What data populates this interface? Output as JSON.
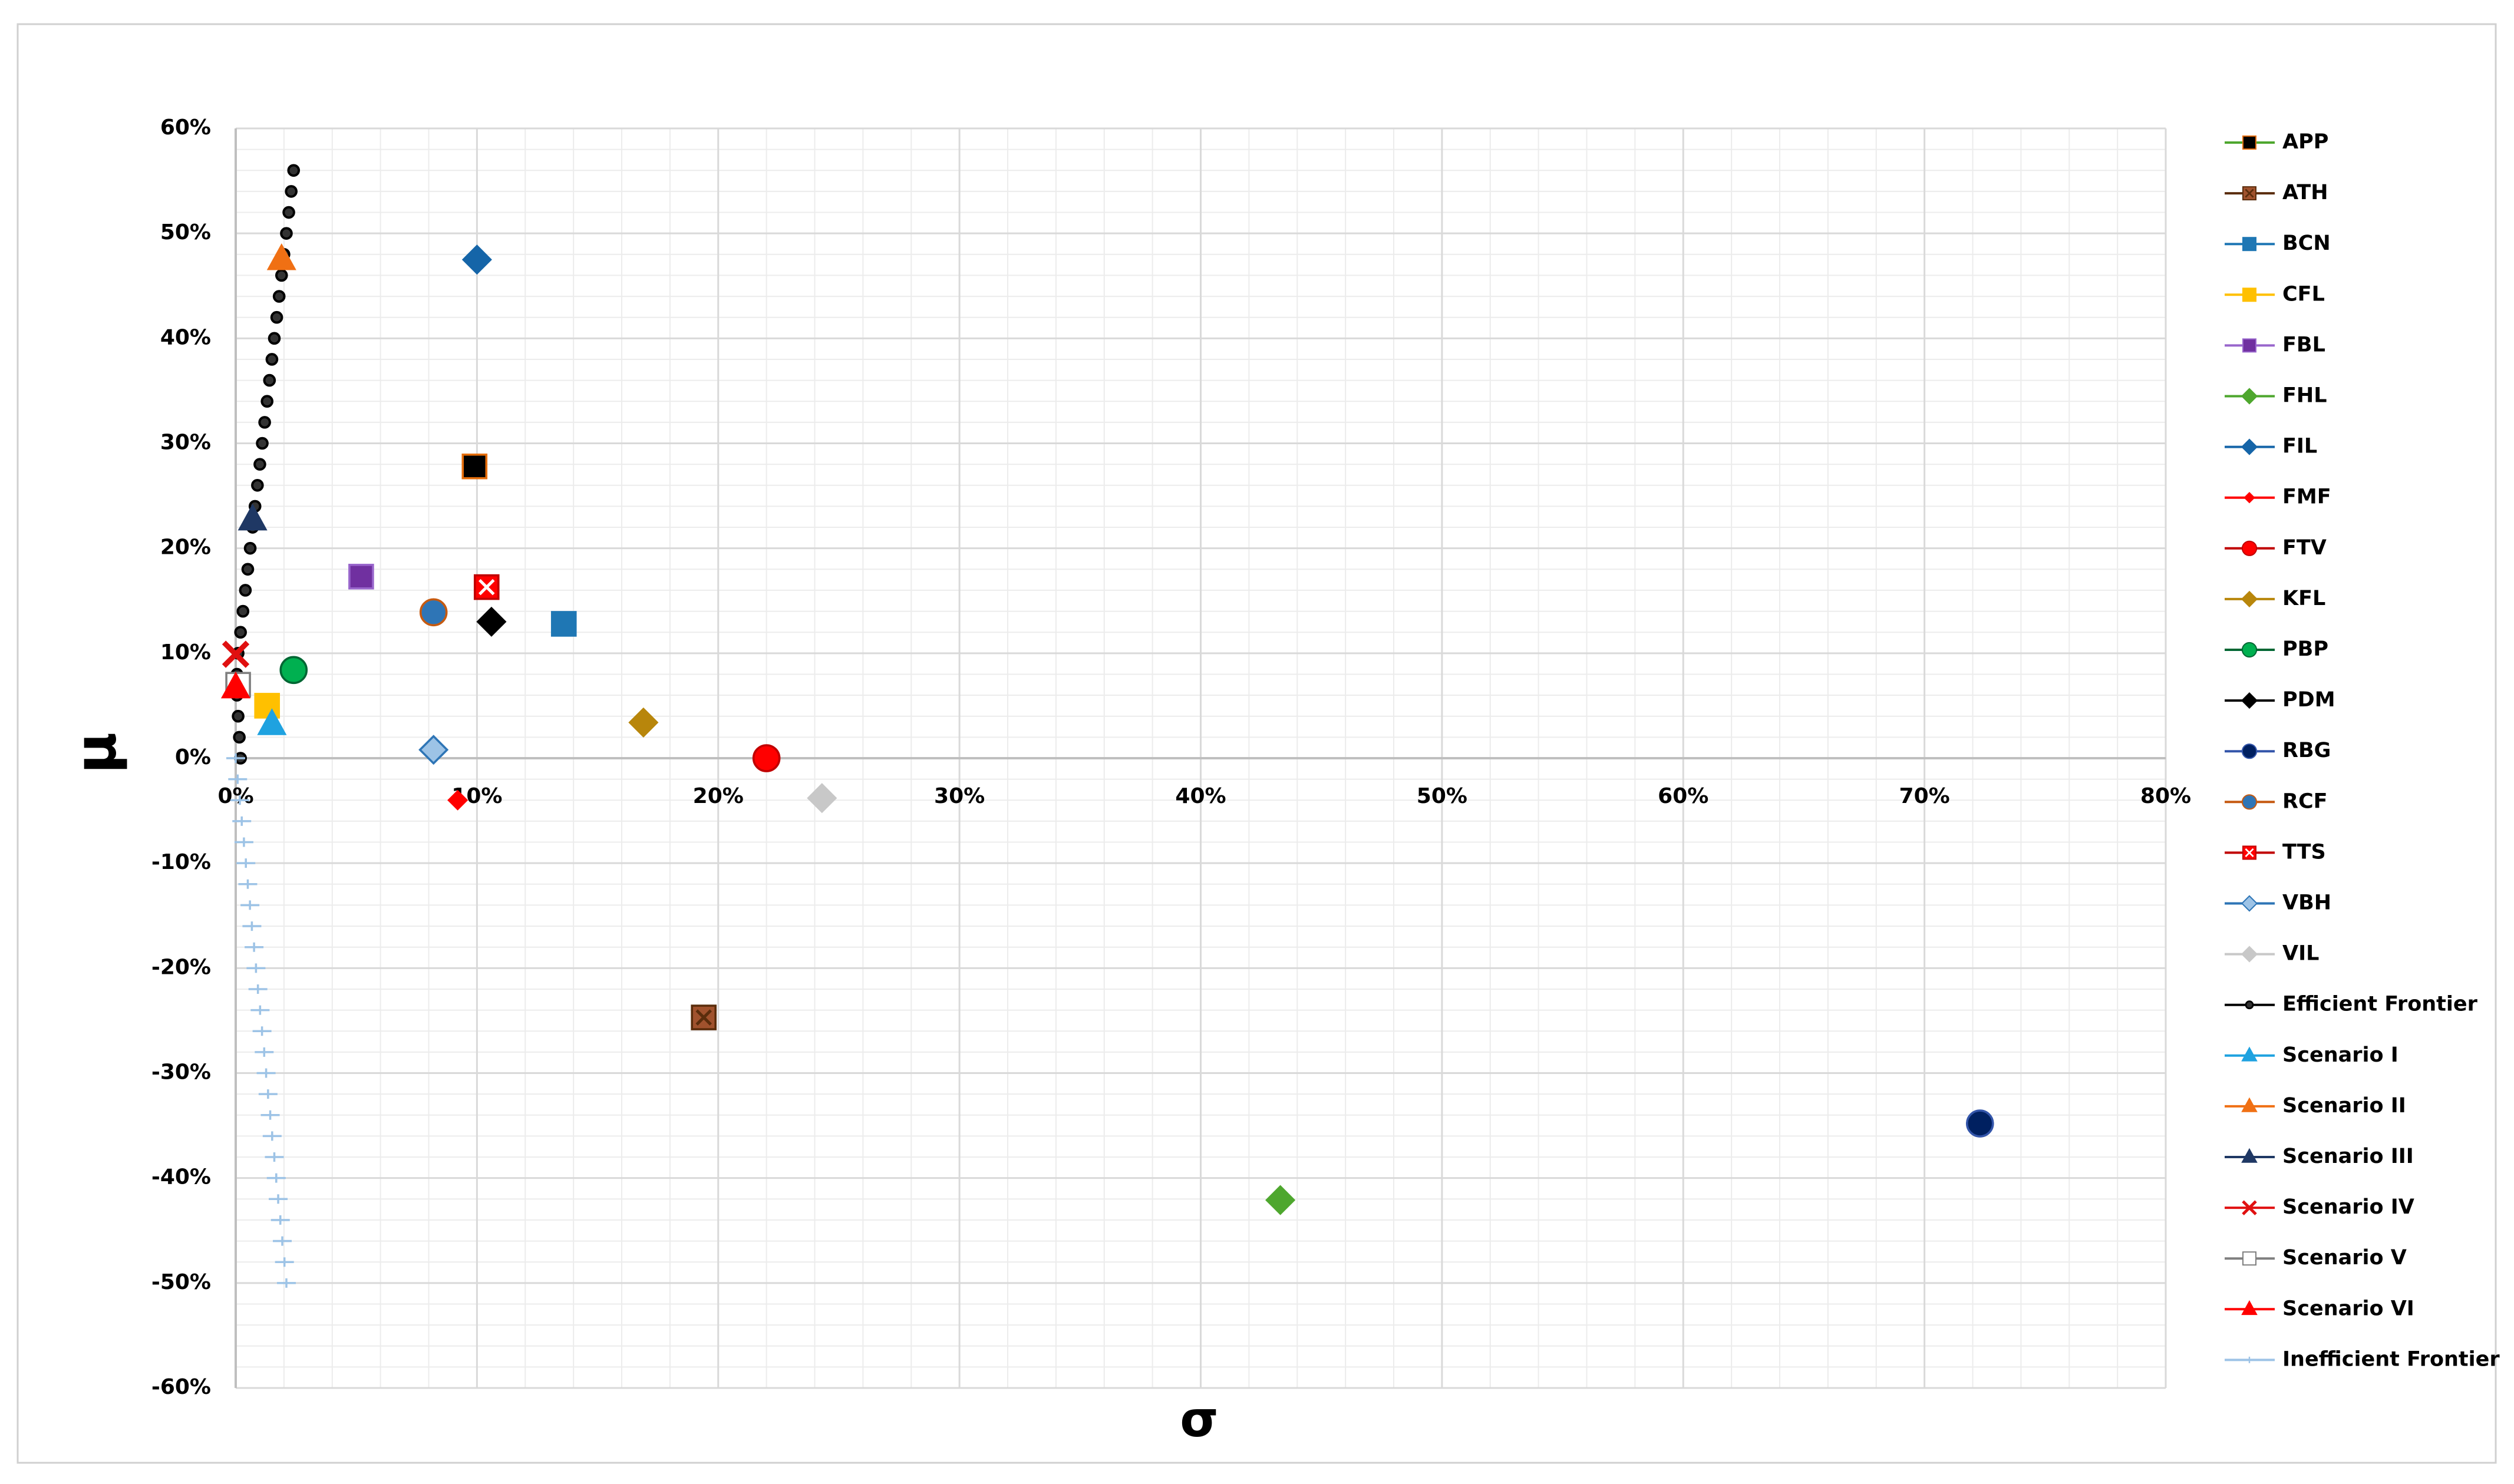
{
  "chart_data": {
    "type": "scatter",
    "xlabel": "σ",
    "ylabel": "μ",
    "xlim": [
      0,
      80
    ],
    "ylim": [
      -60,
      60
    ],
    "xticks": [
      {
        "value": 0,
        "label": "0%"
      },
      {
        "value": 10,
        "label": "10%"
      },
      {
        "value": 20,
        "label": "20%"
      },
      {
        "value": 30,
        "label": "30%"
      },
      {
        "value": 40,
        "label": "40%"
      },
      {
        "value": 50,
        "label": "50%"
      },
      {
        "value": 60,
        "label": "60%"
      },
      {
        "value": 70,
        "label": "70%"
      },
      {
        "value": 80,
        "label": "80%"
      }
    ],
    "yticks": [
      {
        "value": -60,
        "label": "-60%"
      },
      {
        "value": -50,
        "label": "-50%"
      },
      {
        "value": -40,
        "label": "-40%"
      },
      {
        "value": -30,
        "label": "-30%"
      },
      {
        "value": -20,
        "label": "-20%"
      },
      {
        "value": -10,
        "label": "-10%"
      },
      {
        "value": 0,
        "label": "0%"
      },
      {
        "value": 10,
        "label": "10%"
      },
      {
        "value": 20,
        "label": "20%"
      },
      {
        "value": 30,
        "label": "30%"
      },
      {
        "value": 40,
        "label": "40%"
      },
      {
        "value": 50,
        "label": "50%"
      },
      {
        "value": 60,
        "label": "60%"
      }
    ],
    "grid": true,
    "minor_grid": true,
    "legend": "right",
    "series": [
      {
        "name": "APP",
        "color": "#000000",
        "edgecolor": "#e46c0a",
        "marker": "square",
        "x": [
          9.9
        ],
        "values": [
          27.8
        ]
      },
      {
        "name": "ATH",
        "color": "#a0522d",
        "edgecolor": "#5a2d0c",
        "marker": "square-x",
        "x": [
          19.4
        ],
        "values": [
          -24.7
        ]
      },
      {
        "name": "BCN",
        "color": "#1f77b4",
        "marker": "square",
        "x": [
          13.6
        ],
        "values": [
          12.8
        ]
      },
      {
        "name": "CFL",
        "color": "#ffc000",
        "marker": "square",
        "x": [
          1.3
        ],
        "values": [
          5.0
        ]
      },
      {
        "name": "FBL",
        "color": "#7030a0",
        "edgecolor": "#9966cc",
        "marker": "square",
        "x": [
          5.2
        ],
        "values": [
          17.3
        ]
      },
      {
        "name": "FHL",
        "color": "#4ea72e",
        "marker": "diamond",
        "x": [
          43.3
        ],
        "values": [
          -42.1
        ]
      },
      {
        "name": "FIL",
        "color": "#1565a8",
        "marker": "diamond",
        "x": [
          10.0
        ],
        "values": [
          47.5
        ]
      },
      {
        "name": "FMF",
        "color": "#ff0000",
        "marker": "diamond-small",
        "x": [
          9.2
        ],
        "values": [
          -4.0
        ]
      },
      {
        "name": "FTV",
        "color": "#ff0000",
        "edgecolor": "#c00000",
        "marker": "circle",
        "x": [
          22.0
        ],
        "values": [
          0.0
        ]
      },
      {
        "name": "KFL",
        "color": "#b8860b",
        "marker": "diamond",
        "x": [
          16.9
        ],
        "values": [
          3.4
        ]
      },
      {
        "name": "PBP",
        "color": "#00b050",
        "edgecolor": "#006633",
        "marker": "circle",
        "x": [
          2.4
        ],
        "values": [
          8.4
        ]
      },
      {
        "name": "PDM",
        "color": "#000000",
        "marker": "diamond",
        "x": [
          10.6
        ],
        "values": [
          13.0
        ]
      },
      {
        "name": "RBG",
        "color": "#002060",
        "edgecolor": "#3355aa",
        "marker": "circle",
        "x": [
          72.3
        ],
        "values": [
          -34.8
        ]
      },
      {
        "name": "RCF",
        "color": "#2e75b6",
        "edgecolor": "#c55a11",
        "marker": "circle",
        "x": [
          8.2
        ],
        "values": [
          13.9
        ]
      },
      {
        "name": "TTS",
        "color": "#ff0000",
        "edgecolor": "#c00000",
        "marker": "square-x",
        "x": [
          10.4
        ],
        "values": [
          16.3
        ]
      },
      {
        "name": "VBH",
        "color": "#9dc3e6",
        "edgecolor": "#2e75b6",
        "marker": "diamond",
        "x": [
          8.2
        ],
        "values": [
          0.8
        ]
      },
      {
        "name": "VIL",
        "color": "#c8c8c8",
        "marker": "diamond",
        "x": [
          24.3
        ],
        "values": [
          -3.8
        ]
      },
      {
        "name": "Efficient Frontier",
        "color": "#000000",
        "marker": "ring",
        "x": [
          0.2,
          0.15,
          0.1,
          0.05,
          0.05,
          0.1,
          0.2,
          0.3,
          0.4,
          0.5,
          0.6,
          0.7,
          0.8,
          0.9,
          1.0,
          1.1,
          1.2,
          1.3,
          1.4,
          1.5,
          1.6,
          1.7,
          1.8,
          1.9,
          2.0,
          2.1,
          2.2,
          2.3,
          2.4
        ],
        "values": [
          0,
          2,
          4,
          6,
          8,
          10,
          12,
          14,
          16,
          18,
          20,
          22,
          24,
          26,
          28,
          30,
          32,
          34,
          36,
          38,
          40,
          42,
          44,
          46,
          48,
          50,
          52,
          54,
          56
        ]
      },
      {
        "name": "Scenario I",
        "color": "#1fa2e0",
        "marker": "triangle",
        "x": [
          1.5
        ],
        "values": [
          3.2
        ]
      },
      {
        "name": "Scenario II",
        "color": "#f07014",
        "marker": "triangle",
        "x": [
          1.9
        ],
        "values": [
          47.5
        ]
      },
      {
        "name": "Scenario III",
        "color": "#1f3864",
        "marker": "triangle",
        "x": [
          0.7
        ],
        "values": [
          22.7
        ]
      },
      {
        "name": "Scenario IV",
        "color": "#e01010",
        "marker": "x",
        "x": [
          0.0
        ],
        "values": [
          9.9
        ]
      },
      {
        "name": "Scenario V",
        "color": "#ffffff",
        "edgecolor": "#7f7f7f",
        "marker": "square",
        "x": [
          0.1
        ],
        "values": [
          7.0
        ]
      },
      {
        "name": "Scenario VI",
        "color": "#ff0000",
        "marker": "triangle",
        "x": [
          0.0
        ],
        "values": [
          6.7
        ]
      },
      {
        "name": "Inefficient Frontier",
        "color": "#9dc3e6",
        "marker": "plus",
        "x": [
          0,
          0.08,
          0.17,
          0.25,
          0.34,
          0.42,
          0.5,
          0.59,
          0.67,
          0.76,
          0.84,
          0.92,
          1.01,
          1.09,
          1.18,
          1.26,
          1.34,
          1.43,
          1.51,
          1.6,
          1.68,
          1.76,
          1.85,
          1.93,
          2.02,
          2.1
        ],
        "values": [
          0,
          -2,
          -4,
          -6,
          -8,
          -10,
          -12,
          -14,
          -16,
          -18,
          -20,
          -22,
          -24,
          -26,
          -28,
          -30,
          -32,
          -34,
          -36,
          -38,
          -40,
          -42,
          -44,
          -46,
          -48,
          -50
        ]
      }
    ]
  }
}
